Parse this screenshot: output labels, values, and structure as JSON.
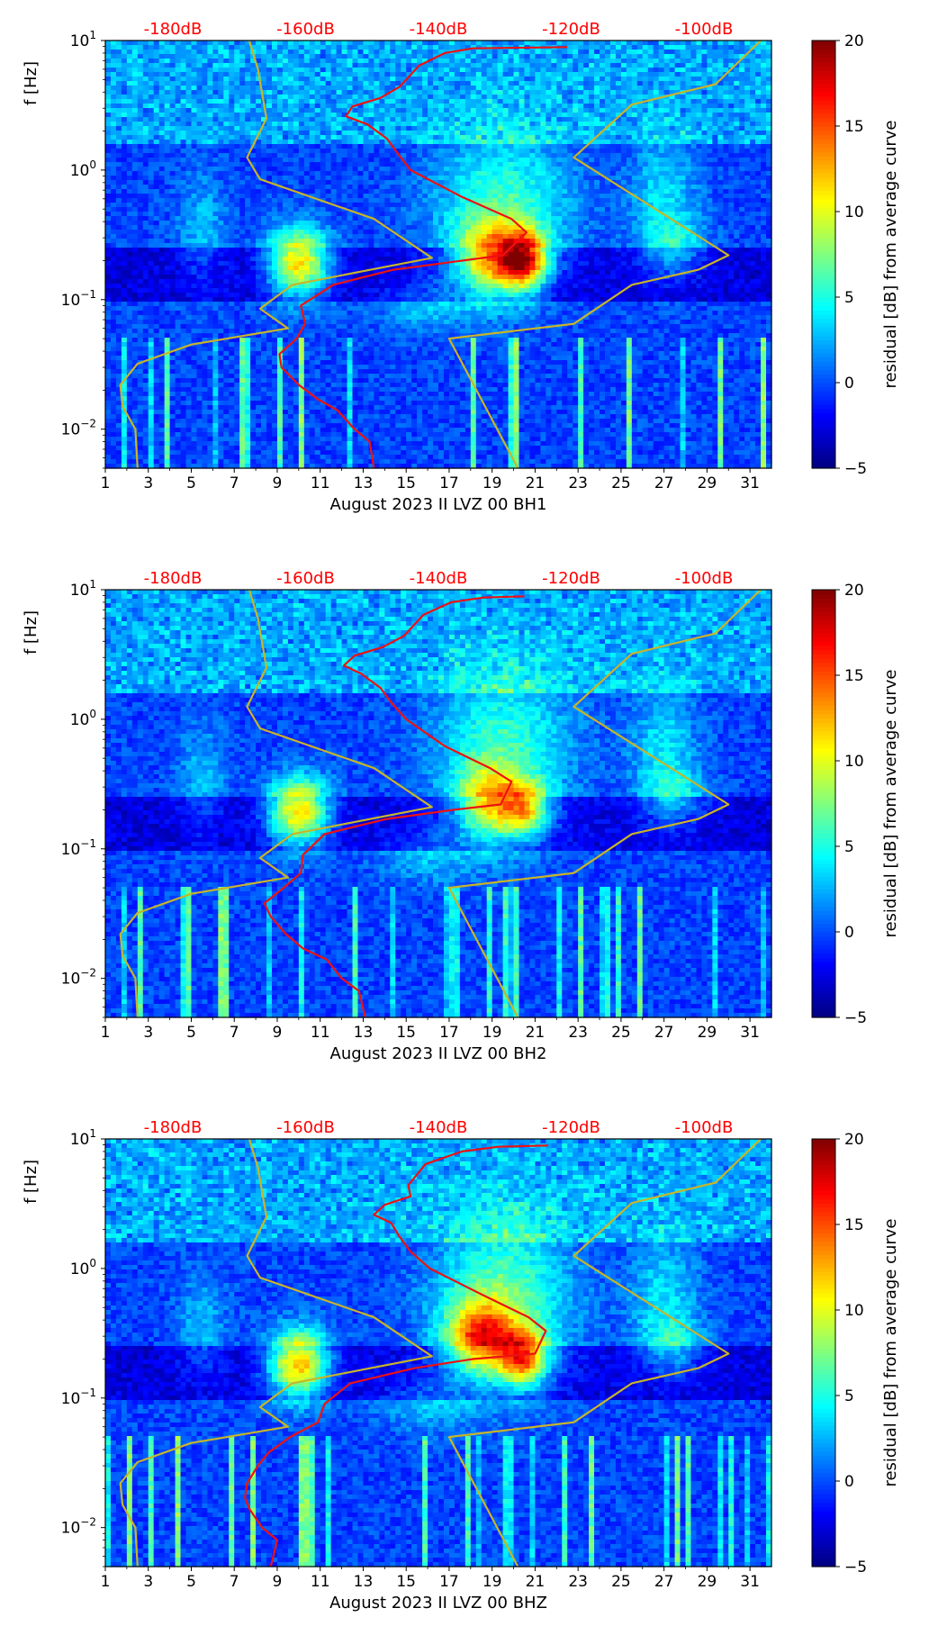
{
  "chart_data": [
    {
      "type": "heatmap",
      "xlabel": "August 2023 II LVZ 00 BH1",
      "ylabel": "f [Hz]",
      "x_ticks": [
        "1",
        "3",
        "5",
        "7",
        "9",
        "11",
        "13",
        "15",
        "17",
        "19",
        "21",
        "23",
        "25",
        "27",
        "29",
        "31"
      ],
      "x_range": [
        1,
        32
      ],
      "y_range": [
        0.005,
        10
      ],
      "y_scale": "log",
      "y_ticks": [
        {
          "value": 10,
          "base": "10",
          "exp": "1"
        },
        {
          "value": 1,
          "base": "10",
          "exp": "0"
        },
        {
          "value": 0.1,
          "base": "10",
          "exp": "−1"
        },
        {
          "value": 0.01,
          "base": "10",
          "exp": "−2"
        }
      ],
      "top_axis_labels": [
        "-180dB",
        "-160dB",
        "-140dB",
        "-120dB",
        "-100dB"
      ],
      "top_axis_color": "#ff0000",
      "colorbar": {
        "label": "residual [dB] from average curve",
        "min": -5,
        "max": 20,
        "ticks": [
          "−5",
          "0",
          "5",
          "10",
          "15",
          "20"
        ],
        "colormap": "jet"
      },
      "yellow_curve_left": [
        [
          2.5,
          0.005
        ],
        [
          2.4,
          0.01
        ],
        [
          1.8,
          0.015
        ],
        [
          1.7,
          0.022
        ],
        [
          2.5,
          0.032
        ],
        [
          5,
          0.045
        ],
        [
          9.5,
          0.06
        ],
        [
          8.2,
          0.085
        ],
        [
          9.7,
          0.13
        ],
        [
          16.2,
          0.21
        ],
        [
          13.5,
          0.42
        ],
        [
          8.2,
          0.85
        ],
        [
          7.6,
          1.25
        ],
        [
          8.5,
          2.5
        ],
        [
          8.1,
          6
        ],
        [
          7.7,
          10
        ]
      ],
      "yellow_curve_right": [
        [
          20.2,
          0.005
        ],
        [
          17,
          0.05
        ],
        [
          22.8,
          0.065
        ],
        [
          25.5,
          0.13
        ],
        [
          28.6,
          0.17
        ],
        [
          30,
          0.22
        ],
        [
          22.8,
          1.25
        ],
        [
          25.5,
          3.2
        ],
        [
          29.4,
          4.6
        ],
        [
          31.5,
          10
        ]
      ],
      "red_curve": [
        [
          13.5,
          0.005
        ],
        [
          13.3,
          0.008
        ],
        [
          12.6,
          0.01
        ],
        [
          11.8,
          0.014
        ],
        [
          10.9,
          0.017
        ],
        [
          10,
          0.022
        ],
        [
          9.2,
          0.03
        ],
        [
          9.1,
          0.038
        ],
        [
          9.9,
          0.05
        ],
        [
          10.3,
          0.065
        ],
        [
          10.1,
          0.09
        ],
        [
          11.6,
          0.13
        ],
        [
          14.4,
          0.17
        ],
        [
          17.6,
          0.2
        ],
        [
          19.5,
          0.22
        ],
        [
          20.6,
          0.33
        ],
        [
          19.9,
          0.42
        ],
        [
          17.6,
          0.62
        ],
        [
          15.2,
          1.0
        ],
        [
          14.6,
          1.35
        ],
        [
          14.1,
          1.75
        ],
        [
          13.2,
          2.25
        ],
        [
          12.2,
          2.6
        ],
        [
          12.5,
          3.1
        ],
        [
          13.8,
          3.6
        ],
        [
          14.7,
          4.4
        ],
        [
          15.6,
          6.4
        ],
        [
          16.8,
          8.0
        ],
        [
          18.1,
          8.7
        ],
        [
          22.5,
          8.9
        ]
      ],
      "blobs": [
        {
          "x": 10,
          "f": 0.19,
          "sx": 1.0,
          "sy": 0.18,
          "v": 14
        },
        {
          "x": 19,
          "f": 0.2,
          "sx": 1.2,
          "sy": 0.2,
          "v": 12
        },
        {
          "x": 20.5,
          "f": 0.2,
          "sx": 0.8,
          "sy": 0.15,
          "v": 15
        },
        {
          "x": 19.5,
          "f": 0.55,
          "sx": 2.2,
          "sy": 0.4,
          "v": 6
        },
        {
          "x": 27,
          "f": 0.6,
          "sx": 1.1,
          "sy": 0.35,
          "v": 4
        },
        {
          "x": 5.5,
          "f": 0.35,
          "sx": 0.8,
          "sy": 0.3,
          "v": 3
        },
        {
          "x": 16,
          "f": 0.09,
          "sx": 1.6,
          "sy": 0.15,
          "v": 3
        },
        {
          "x": 27.5,
          "f": 0.25,
          "sx": 1.0,
          "sy": 0.15,
          "v": 4
        }
      ]
    },
    {
      "type": "heatmap",
      "xlabel": "August 2023 II LVZ 00 BH2",
      "ylabel": "f [Hz]",
      "x_ticks": [
        "1",
        "3",
        "5",
        "7",
        "9",
        "11",
        "13",
        "15",
        "17",
        "19",
        "21",
        "23",
        "25",
        "27",
        "29",
        "31"
      ],
      "x_range": [
        1,
        32
      ],
      "y_range": [
        0.005,
        10
      ],
      "y_scale": "log",
      "y_ticks": [
        {
          "value": 10,
          "base": "10",
          "exp": "1"
        },
        {
          "value": 1,
          "base": "10",
          "exp": "0"
        },
        {
          "value": 0.1,
          "base": "10",
          "exp": "−1"
        },
        {
          "value": 0.01,
          "base": "10",
          "exp": "−2"
        }
      ],
      "top_axis_labels": [
        "-180dB",
        "-160dB",
        "-140dB",
        "-120dB",
        "-100dB"
      ],
      "top_axis_color": "#ff0000",
      "colorbar": {
        "label": "residual [dB] from average curve",
        "min": -5,
        "max": 20,
        "ticks": [
          "−5",
          "0",
          "5",
          "10",
          "15",
          "20"
        ],
        "colormap": "jet"
      },
      "yellow_curve_left": [
        [
          2.5,
          0.005
        ],
        [
          2.4,
          0.01
        ],
        [
          1.8,
          0.015
        ],
        [
          1.7,
          0.022
        ],
        [
          2.5,
          0.032
        ],
        [
          5,
          0.045
        ],
        [
          9.5,
          0.06
        ],
        [
          8.2,
          0.085
        ],
        [
          9.7,
          0.13
        ],
        [
          16.2,
          0.21
        ],
        [
          13.5,
          0.42
        ],
        [
          8.2,
          0.85
        ],
        [
          7.6,
          1.25
        ],
        [
          8.5,
          2.5
        ],
        [
          8.1,
          6
        ],
        [
          7.7,
          10
        ]
      ],
      "yellow_curve_right": [
        [
          20.2,
          0.005
        ],
        [
          17,
          0.05
        ],
        [
          22.8,
          0.065
        ],
        [
          25.5,
          0.13
        ],
        [
          28.6,
          0.17
        ],
        [
          30,
          0.22
        ],
        [
          22.8,
          1.25
        ],
        [
          25.5,
          3.2
        ],
        [
          29.4,
          4.6
        ],
        [
          31.5,
          10
        ]
      ],
      "red_curve": [
        [
          13.1,
          0.005
        ],
        [
          12.8,
          0.008
        ],
        [
          12,
          0.01
        ],
        [
          11.3,
          0.014
        ],
        [
          10.2,
          0.017
        ],
        [
          9.4,
          0.022
        ],
        [
          8.7,
          0.03
        ],
        [
          8.4,
          0.038
        ],
        [
          9.3,
          0.05
        ],
        [
          10.1,
          0.065
        ],
        [
          10.2,
          0.09
        ],
        [
          11.2,
          0.13
        ],
        [
          14.1,
          0.17
        ],
        [
          17.2,
          0.2
        ],
        [
          19.4,
          0.22
        ],
        [
          19.9,
          0.33
        ],
        [
          18.9,
          0.42
        ],
        [
          16.8,
          0.62
        ],
        [
          15,
          1.0
        ],
        [
          14.3,
          1.35
        ],
        [
          13.8,
          1.75
        ],
        [
          12.9,
          2.25
        ],
        [
          12.1,
          2.6
        ],
        [
          12.6,
          3.1
        ],
        [
          13.9,
          3.6
        ],
        [
          14.9,
          4.4
        ],
        [
          15.8,
          6.4
        ],
        [
          17.1,
          8.0
        ],
        [
          18.6,
          8.7
        ],
        [
          20.5,
          8.9
        ]
      ],
      "blobs": [
        {
          "x": 10,
          "f": 0.19,
          "sx": 1.0,
          "sy": 0.18,
          "v": 14
        },
        {
          "x": 18.8,
          "f": 0.22,
          "sx": 1.0,
          "sy": 0.2,
          "v": 10
        },
        {
          "x": 20.5,
          "f": 0.2,
          "sx": 0.8,
          "sy": 0.15,
          "v": 11
        },
        {
          "x": 19.5,
          "f": 0.6,
          "sx": 2.2,
          "sy": 0.45,
          "v": 6
        },
        {
          "x": 27,
          "f": 0.6,
          "sx": 1.1,
          "sy": 0.35,
          "v": 4
        },
        {
          "x": 5.5,
          "f": 0.35,
          "sx": 0.8,
          "sy": 0.3,
          "v": 3
        },
        {
          "x": 16,
          "f": 0.09,
          "sx": 1.6,
          "sy": 0.15,
          "v": 3
        },
        {
          "x": 27.5,
          "f": 0.25,
          "sx": 1.0,
          "sy": 0.15,
          "v": 4
        }
      ]
    },
    {
      "type": "heatmap",
      "xlabel": "August 2023 II LVZ 00 BHZ",
      "ylabel": "f [Hz]",
      "x_ticks": [
        "1",
        "3",
        "5",
        "7",
        "9",
        "11",
        "13",
        "15",
        "17",
        "19",
        "21",
        "23",
        "25",
        "27",
        "29",
        "31"
      ],
      "x_range": [
        1,
        32
      ],
      "y_range": [
        0.005,
        10
      ],
      "y_scale": "log",
      "y_ticks": [
        {
          "value": 10,
          "base": "10",
          "exp": "1"
        },
        {
          "value": 1,
          "base": "10",
          "exp": "0"
        },
        {
          "value": 0.1,
          "base": "10",
          "exp": "−1"
        },
        {
          "value": 0.01,
          "base": "10",
          "exp": "−2"
        }
      ],
      "top_axis_labels": [
        "-180dB",
        "-160dB",
        "-140dB",
        "-120dB",
        "-100dB"
      ],
      "top_axis_color": "#ff0000",
      "colorbar": {
        "label": "residual [dB] from average curve",
        "min": -5,
        "max": 20,
        "ticks": [
          "−5",
          "0",
          "5",
          "10",
          "15",
          "20"
        ],
        "colormap": "jet"
      },
      "yellow_curve_left": [
        [
          2.5,
          0.005
        ],
        [
          2.4,
          0.01
        ],
        [
          1.8,
          0.015
        ],
        [
          1.7,
          0.022
        ],
        [
          2.5,
          0.032
        ],
        [
          5,
          0.045
        ],
        [
          9.5,
          0.06
        ],
        [
          8.2,
          0.085
        ],
        [
          9.7,
          0.13
        ],
        [
          16.2,
          0.21
        ],
        [
          13.5,
          0.42
        ],
        [
          8.2,
          0.85
        ],
        [
          7.6,
          1.25
        ],
        [
          8.5,
          2.5
        ],
        [
          8.1,
          6
        ],
        [
          7.7,
          10
        ]
      ],
      "yellow_curve_right": [
        [
          20.2,
          0.005
        ],
        [
          17,
          0.05
        ],
        [
          22.8,
          0.065
        ],
        [
          25.5,
          0.13
        ],
        [
          28.6,
          0.17
        ],
        [
          30,
          0.22
        ],
        [
          22.8,
          1.25
        ],
        [
          25.5,
          3.2
        ],
        [
          29.4,
          4.6
        ],
        [
          31.5,
          10
        ]
      ],
      "red_curve": [
        [
          8.7,
          0.005
        ],
        [
          9,
          0.008
        ],
        [
          8.3,
          0.01
        ],
        [
          7.7,
          0.014
        ],
        [
          7.5,
          0.017
        ],
        [
          7.6,
          0.022
        ],
        [
          8.1,
          0.03
        ],
        [
          8.6,
          0.038
        ],
        [
          9.6,
          0.05
        ],
        [
          10.9,
          0.065
        ],
        [
          11.2,
          0.09
        ],
        [
          12.4,
          0.13
        ],
        [
          15.4,
          0.17
        ],
        [
          18.1,
          0.2
        ],
        [
          21,
          0.22
        ],
        [
          21.5,
          0.33
        ],
        [
          20.7,
          0.42
        ],
        [
          18.6,
          0.62
        ],
        [
          16.1,
          1.0
        ],
        [
          15.2,
          1.35
        ],
        [
          14.7,
          1.75
        ],
        [
          14.3,
          2.25
        ],
        [
          13.5,
          2.6
        ],
        [
          14,
          3.1
        ],
        [
          15.2,
          3.6
        ],
        [
          15.1,
          4.4
        ],
        [
          15.9,
          6.4
        ],
        [
          17.6,
          8.0
        ],
        [
          19.3,
          8.7
        ],
        [
          21.6,
          8.9
        ]
      ],
      "blobs": [
        {
          "x": 10,
          "f": 0.18,
          "sx": 1.0,
          "sy": 0.18,
          "v": 15
        },
        {
          "x": 18.5,
          "f": 0.28,
          "sx": 1.1,
          "sy": 0.2,
          "v": 13
        },
        {
          "x": 20.5,
          "f": 0.2,
          "sx": 0.8,
          "sy": 0.15,
          "v": 14
        },
        {
          "x": 19.5,
          "f": 0.6,
          "sx": 2.2,
          "sy": 0.45,
          "v": 7
        },
        {
          "x": 27,
          "f": 0.6,
          "sx": 1.1,
          "sy": 0.35,
          "v": 4
        },
        {
          "x": 5.5,
          "f": 0.35,
          "sx": 0.8,
          "sy": 0.3,
          "v": 3
        },
        {
          "x": 16,
          "f": 0.09,
          "sx": 1.6,
          "sy": 0.15,
          "v": 3
        },
        {
          "x": 27.5,
          "f": 0.25,
          "sx": 1.0,
          "sy": 0.15,
          "v": 4
        }
      ]
    }
  ]
}
